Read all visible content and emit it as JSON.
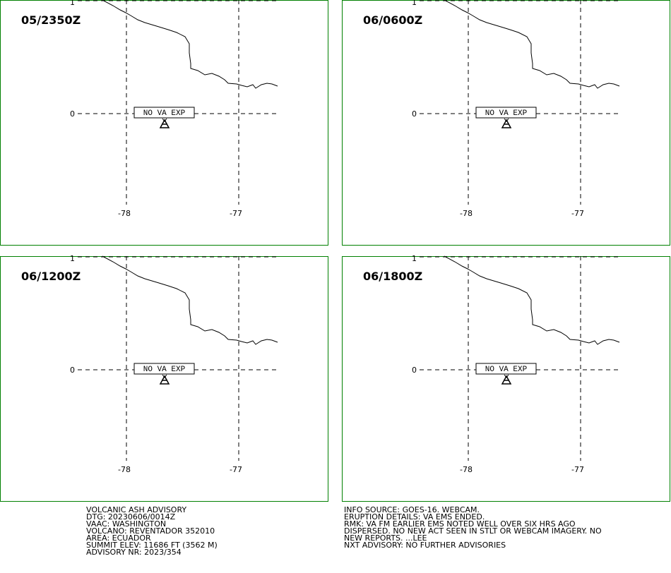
{
  "panels": [
    {
      "time": "05/2350Z",
      "lat_labels": [
        "1",
        "0"
      ],
      "lon_labels": [
        "-78",
        "-77"
      ],
      "box_label": "NO VA EXP"
    },
    {
      "time": "06/0600Z",
      "lat_labels": [
        "1",
        "0"
      ],
      "lon_labels": [
        "-78",
        "-77"
      ],
      "box_label": "NO VA EXP"
    },
    {
      "time": "06/1200Z",
      "lat_labels": [
        "1",
        "0"
      ],
      "lon_labels": [
        "-78",
        "-77"
      ],
      "box_label": "NO VA EXP"
    },
    {
      "time": "06/1800Z",
      "lat_labels": [
        "1",
        "0"
      ],
      "lon_labels": [
        "-78",
        "-77"
      ],
      "box_label": "NO VA EXP"
    }
  ],
  "advisory_left": [
    "VOLCANIC ASH ADVISORY",
    "DTG: 20230606/0014Z",
    "VAAC: WASHINGTON",
    "VOLCANO: REVENTADOR 352010",
    "AREA: ECUADOR",
    "SUMMIT ELEV: 11686 FT (3562 M)",
    "ADVISORY NR: 2023/354"
  ],
  "advisory_right": [
    "INFO SOURCE: GOES-16. WEBCAM.",
    "ERUPTION DETAILS: VA EMS ENDED.",
    "RMK: VA FM EARLIER EMS NOTED WELL OVER SIX HRS AGO",
    "DISPERSED. NO NEW ACT SEEN IN STLT OR WEBCAM IMAGERY. NO",
    "NEW REPORTS. ...LEE",
    "NXT ADVISORY: NO FURTHER ADVISORIES"
  ]
}
